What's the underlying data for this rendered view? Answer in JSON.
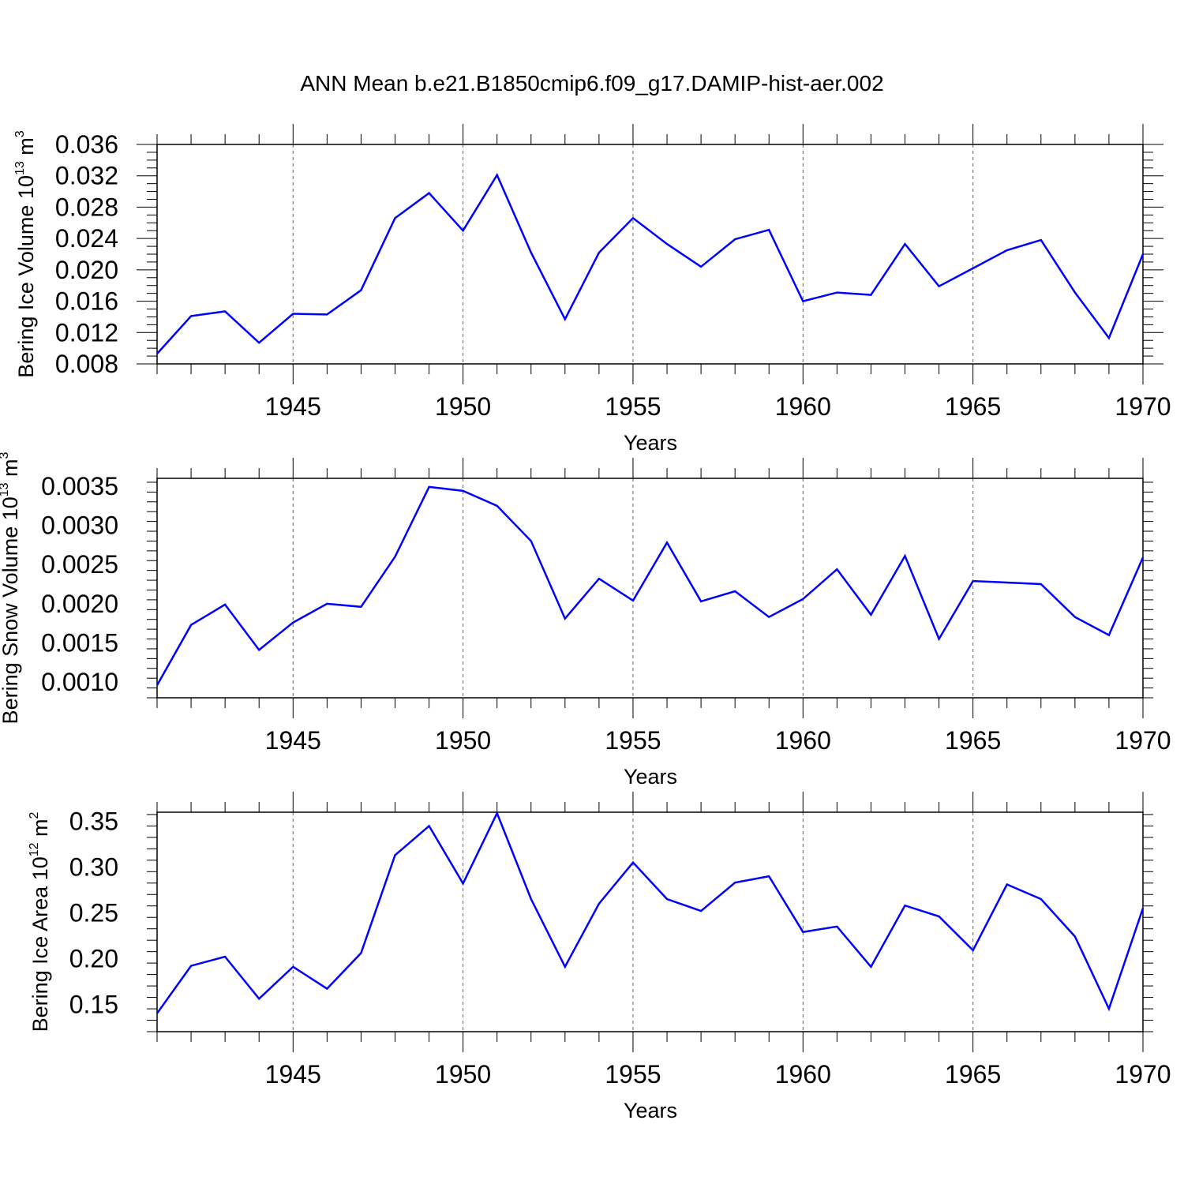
{
  "title": "ANN Mean b.e21.B1850cmip6.f09_g17.DAMIP-hist-aer.002",
  "colors": {
    "line": "#0000ff",
    "axis": "#000000",
    "grid": "#666666",
    "background": "#ffffff"
  },
  "chart_data": [
    {
      "type": "line",
      "ylabel": "Bering Ice Volume 10",
      "ylabel_exp": "13",
      "ylabel_unit": "m",
      "ylabel_unit_exp": "3",
      "xlabel": "Years",
      "xlim": [
        1941,
        1970
      ],
      "ylim": [
        0.008,
        0.0375
      ],
      "xticks": [
        1945,
        1950,
        1955,
        1960,
        1965,
        1970
      ],
      "yticks": [
        "0.008",
        "0.012",
        "0.016",
        "0.020",
        "0.024",
        "0.028",
        "0.032",
        "0.036"
      ],
      "grid": "vertical dashed at major x ticks",
      "x": [
        1941,
        1942,
        1943,
        1944,
        1945,
        1946,
        1947,
        1948,
        1949,
        1950,
        1951,
        1952,
        1953,
        1954,
        1955,
        1956,
        1957,
        1958,
        1959,
        1960,
        1961,
        1962,
        1963,
        1964,
        1965,
        1966,
        1967,
        1968,
        1969,
        1970
      ],
      "series": [
        {
          "values": [
            0.0093,
            0.0141,
            0.0147,
            0.0107,
            0.0144,
            0.0143,
            0.0174,
            0.0266,
            0.0298,
            0.025,
            0.0321,
            0.0222,
            0.0137,
            0.0222,
            0.0266,
            0.0233,
            0.0204,
            0.0239,
            0.0251,
            0.016,
            0.0171,
            0.0168,
            0.0233,
            0.0179,
            0.0202,
            0.0225,
            0.0238,
            0.0171,
            0.0113,
            0.022
          ]
        }
      ]
    },
    {
      "type": "line",
      "ylabel": "Bering Snow Volume 10",
      "ylabel_exp": "13",
      "ylabel_unit": "m",
      "ylabel_unit_exp": "3",
      "xlabel": "Years",
      "xlim": [
        1941,
        1970
      ],
      "ylim": [
        0.0008,
        0.0036
      ],
      "xticks": [
        1945,
        1950,
        1955,
        1960,
        1965,
        1970
      ],
      "yticks": [
        "0.0010",
        "0.0015",
        "0.0020",
        "0.0025",
        "0.0030",
        "0.0035"
      ],
      "grid": "vertical dashed at major x ticks",
      "x": [
        1941,
        1942,
        1943,
        1944,
        1945,
        1946,
        1947,
        1948,
        1949,
        1950,
        1951,
        1952,
        1953,
        1954,
        1955,
        1956,
        1957,
        1958,
        1959,
        1960,
        1961,
        1962,
        1963,
        1964,
        1965,
        1966,
        1967,
        1968,
        1969,
        1970
      ],
      "series": [
        {
          "values": [
            0.00096,
            0.00173,
            0.00199,
            0.00141,
            0.00176,
            0.002,
            0.00196,
            0.0026,
            0.00349,
            0.00344,
            0.00325,
            0.0028,
            0.00181,
            0.00232,
            0.00204,
            0.00278,
            0.00203,
            0.00216,
            0.00183,
            0.00206,
            0.00244,
            0.00186,
            0.00261,
            0.00155,
            0.00229,
            0.00227,
            0.00225,
            0.00183,
            0.0016,
            0.00259
          ]
        }
      ]
    },
    {
      "type": "line",
      "ylabel": "Bering Ice Area 10",
      "ylabel_exp": "12",
      "ylabel_unit": "m",
      "ylabel_unit_exp": "2",
      "xlabel": "Years",
      "xlim": [
        1941,
        1970
      ],
      "ylim": [
        0.12,
        0.36
      ],
      "xticks": [
        1945,
        1950,
        1955,
        1960,
        1965,
        1970
      ],
      "yticks": [
        "0.15",
        "0.20",
        "0.25",
        "0.30",
        "0.35"
      ],
      "grid": "vertical dashed at major x ticks",
      "x": [
        1941,
        1942,
        1943,
        1944,
        1945,
        1946,
        1947,
        1948,
        1949,
        1950,
        1951,
        1952,
        1953,
        1954,
        1955,
        1956,
        1957,
        1958,
        1959,
        1960,
        1961,
        1962,
        1963,
        1964,
        1965,
        1966,
        1967,
        1968,
        1969,
        1970
      ],
      "series": [
        {
          "values": [
            0.14,
            0.192,
            0.202,
            0.156,
            0.191,
            0.167,
            0.206,
            0.313,
            0.345,
            0.282,
            0.359,
            0.265,
            0.191,
            0.26,
            0.305,
            0.265,
            0.252,
            0.283,
            0.29,
            0.229,
            0.235,
            0.191,
            0.258,
            0.246,
            0.209,
            0.281,
            0.265,
            0.224,
            0.145,
            0.255
          ]
        }
      ]
    }
  ]
}
